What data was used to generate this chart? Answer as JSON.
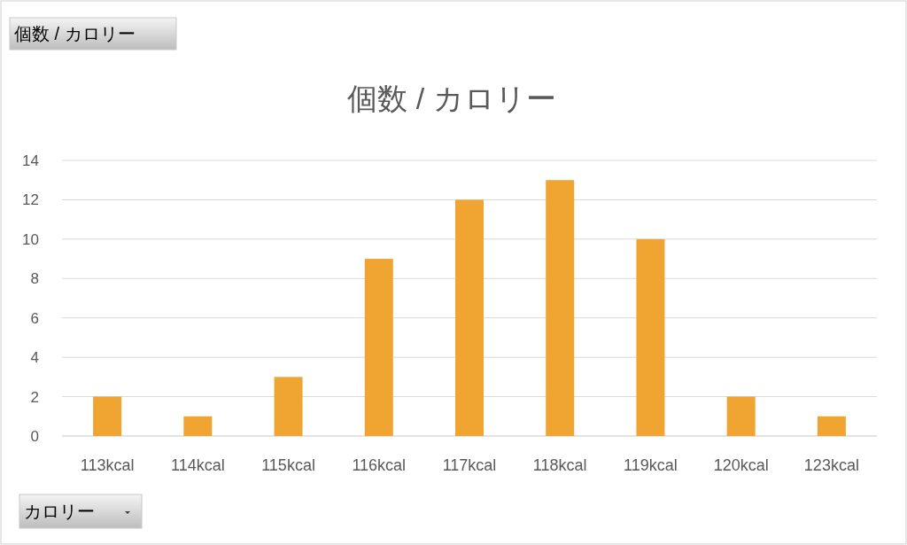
{
  "chart_data": {
    "type": "bar",
    "title": "個数 / カロリー",
    "categories": [
      "113kcal",
      "114kcal",
      "115kcal",
      "116kcal",
      "117kcal",
      "118kcal",
      "119kcal",
      "120kcal",
      "123kcal"
    ],
    "values": [
      2,
      1,
      3,
      9,
      12,
      13,
      10,
      2,
      1
    ],
    "color": "#f0a431",
    "ylim": [
      0,
      14
    ],
    "yticks": [
      0,
      2,
      4,
      6,
      8,
      10,
      12,
      14
    ],
    "grid": "y",
    "annotations": [
      "個数 / カロリー",
      "カロリー"
    ]
  }
}
